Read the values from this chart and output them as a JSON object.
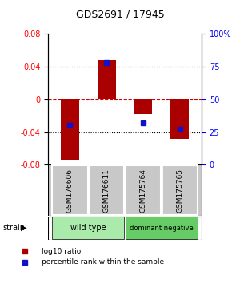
{
  "title": "GDS2691 / 17945",
  "samples": [
    "GSM176606",
    "GSM176611",
    "GSM175764",
    "GSM175765"
  ],
  "log10_ratios": [
    -0.075,
    0.048,
    -0.018,
    -0.048
  ],
  "percentile_ranks": [
    30,
    78,
    32,
    27
  ],
  "ylim_left": [
    -0.08,
    0.08
  ],
  "ylim_right": [
    0,
    100
  ],
  "yticks_left": [
    -0.08,
    -0.04,
    0,
    0.04,
    0.08
  ],
  "yticks_right": [
    0,
    25,
    50,
    75,
    100
  ],
  "bar_color": "#AA0000",
  "dot_color": "#1111CC",
  "zero_line_color": "#CC0000",
  "dotted_color": "#000000",
  "groups": [
    {
      "label": "wild type",
      "samples": [
        0,
        1
      ],
      "color": "#AAEAAA"
    },
    {
      "label": "dominant negative",
      "samples": [
        2,
        3
      ],
      "color": "#66CC66"
    }
  ],
  "group_row_label": "strain",
  "legend_bar_label": "log10 ratio",
  "legend_dot_label": "percentile rank within the sample",
  "sample_box_color": "#C8C8C8",
  "background_color": "#FFFFFF",
  "bar_width": 0.5
}
